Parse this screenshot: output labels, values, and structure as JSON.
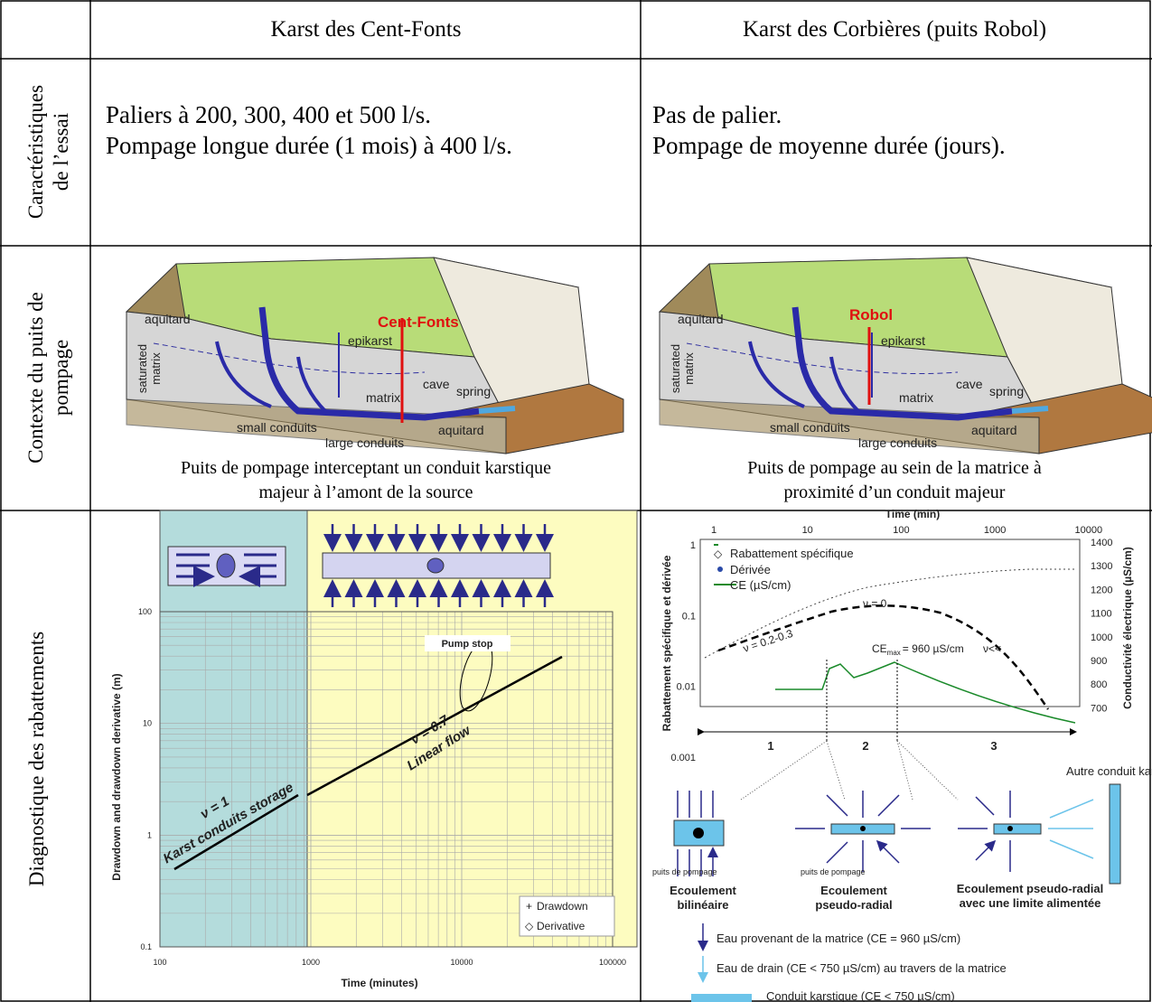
{
  "table": {
    "header": [
      "Karst des Cent-Fonts",
      "Karst des Corbières (puits Robol)"
    ],
    "rows": [
      {
        "label": [
          "Caractéristiques",
          "de l’essai"
        ],
        "cells": [
          [
            "Paliers à 200, 300, 400 et 500 l/s.",
            "Pompage longue durée (1 mois) à 400 l/s."
          ],
          [
            "Pas de palier.",
            "Pompage de moyenne durée (jours)."
          ]
        ]
      },
      {
        "label": [
          "Contexte du puits de",
          "pompage"
        ],
        "cells": [
          {
            "well": "Cent-Fonts",
            "labels": [
              "aquitard",
              "saturated",
              "matrix",
              "epikarst",
              "cave",
              "matrix",
              "spring",
              "small conduits",
              "large conduits",
              "aquitard"
            ],
            "caption": [
              "Puits de pompage interceptant un conduit karstique",
              "majeur à l’amont de la source"
            ]
          },
          {
            "well": "Robol",
            "labels": [
              "aquitard",
              "saturated",
              "matrix",
              "epikarst",
              "cave",
              "matrix",
              "spring",
              "small conduits",
              "large conduits",
              "aquitard"
            ],
            "caption": [
              "Puits de pompage au sein de la matrice à",
              "proximité d’un conduit majeur"
            ]
          }
        ]
      },
      {
        "label": [
          "Diagnostique des rabattements"
        ],
        "cells": [
          {
            "y_label": "Drawdown and drawdown derivative (m)",
            "x_label": "Time (minutes)",
            "x_ticks": [
              "100",
              "1000",
              "10000",
              "100000"
            ],
            "y_ticks": [
              "100",
              "10",
              "1",
              "0.1"
            ],
            "annotations": [
              "Pump stop",
              "ν = 1",
              "Karst conduits storage",
              "ν = 0.7",
              "Linear flow"
            ],
            "legend": [
              "Drawdown",
              "Derivative"
            ]
          },
          {
            "x_label": "Time (min)",
            "x_ticks": [
              "1",
              "10",
              "100",
              "1000",
              "10000"
            ],
            "y_ticks": [
              "1",
              "0.1",
              "0.01",
              "0.001"
            ],
            "y2_ticks": [
              "1400",
              "1300",
              "1200",
              "1100",
              "1000",
              "900",
              "800",
              "700"
            ],
            "y_label": "Rabattement spécifique et dérivée",
            "y2_label": "Conductivité électrique (µS/cm)",
            "legend": [
              "Rabattement spécifique",
              "Dérivée",
              "CE (µS/cm)"
            ],
            "annotations": [
              "ν = 0",
              "ν = 0.2-0.3",
              "ν<<"
            ],
            "ce_max": [
              "CE",
              "max",
              "= 960 µS/cm"
            ],
            "periods": [
              "1",
              "2",
              "3"
            ],
            "other_conduit": "Autre conduit karstique",
            "well_labels": [
              "puits de pompage",
              "puits de pompage"
            ],
            "flows": [
              [
                "Ecoulement",
                "bilinéaire"
              ],
              [
                "Ecoulement",
                "pseudo-radial"
              ],
              [
                "Ecoulement pseudo-radial",
                "avec une limite alimentée"
              ]
            ],
            "key": [
              "Eau provenant de la matrice (CE = 960 µS/cm)",
              "Eau de drain (CE < 750 µS/cm) au travers de la matrice",
              "Conduit karstique (CE < 750 µS/cm)"
            ]
          }
        ]
      }
    ]
  }
}
